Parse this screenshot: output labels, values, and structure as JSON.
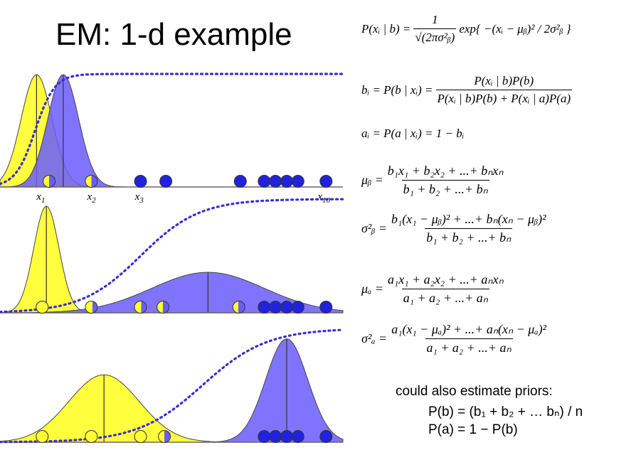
{
  "slide": {
    "title": "EM: 1-d example"
  },
  "panels": [
    {
      "name": "iteration-1",
      "curves": [
        {
          "component": "a",
          "color": "#ffff33",
          "mean": 1.3,
          "sd": 0.55,
          "peak": 1.0
        },
        {
          "component": "b",
          "color": "#6a5cff",
          "mean": 2.25,
          "sd": 0.55,
          "peak": 1.0
        }
      ],
      "posterior_curve": {
        "style": "dotted",
        "color": "#3a2cd6",
        "mid": 1.25,
        "steep": 0.35
      },
      "points": [
        {
          "x": 1.75,
          "b": 0.5
        },
        {
          "x": 3.25,
          "b": 0.5
        },
        {
          "x": 5.0,
          "b": 1
        },
        {
          "x": 5.9,
          "b": 1
        },
        {
          "x": 8.55,
          "b": 1
        },
        {
          "x": 9.4,
          "b": 1
        },
        {
          "x": 9.8,
          "b": 1
        },
        {
          "x": 10.2,
          "b": 1
        },
        {
          "x": 10.6,
          "b": 1
        },
        {
          "x": 11.6,
          "b": 1
        }
      ],
      "axis_labels": [
        {
          "text": "x",
          "sub": "1",
          "x": 1.3
        },
        {
          "text": "x",
          "sub": "2",
          "x": 3.1
        },
        {
          "text": "x",
          "sub": "3",
          "x": 4.8
        },
        {
          "text": "x",
          "sub": "10",
          "x": 11.3
        }
      ]
    },
    {
      "name": "iteration-2",
      "curves": [
        {
          "component": "a",
          "color": "#ffff33",
          "mean": 1.65,
          "sd": 0.45,
          "peak": 1.0
        },
        {
          "component": "b",
          "color": "#6a5cff",
          "mean": 7.4,
          "sd": 2.0,
          "peak": 0.38
        }
      ],
      "posterior_curve": {
        "style": "dotted",
        "color": "#3a2cd6",
        "mid": 5.0,
        "steep": 1.05
      },
      "points": [
        {
          "x": 1.5,
          "b": 0
        },
        {
          "x": 3.25,
          "b": 0.4
        },
        {
          "x": 5.0,
          "b": 0.45
        },
        {
          "x": 5.8,
          "b": 0.5
        },
        {
          "x": 8.5,
          "b": 0.55
        },
        {
          "x": 9.4,
          "b": 1
        },
        {
          "x": 9.8,
          "b": 1
        },
        {
          "x": 10.2,
          "b": 1
        },
        {
          "x": 10.6,
          "b": 1
        },
        {
          "x": 11.6,
          "b": 1
        }
      ]
    },
    {
      "name": "iteration-3",
      "curves": [
        {
          "component": "a",
          "color": "#ffff33",
          "mean": 3.7,
          "sd": 1.25,
          "peak": 0.6
        },
        {
          "component": "b",
          "color": "#6a5cff",
          "mean": 10.2,
          "sd": 0.75,
          "peak": 0.92
        }
      ],
      "posterior_curve": {
        "style": "dotted",
        "color": "#3a2cd6",
        "mid": 7.2,
        "steep": 1.15
      },
      "points": [
        {
          "x": 1.5,
          "b": 0
        },
        {
          "x": 3.25,
          "b": 0
        },
        {
          "x": 5.0,
          "b": 0
        },
        {
          "x": 5.85,
          "b": 0.5
        },
        {
          "x": 9.4,
          "b": 1
        },
        {
          "x": 9.8,
          "b": 1
        },
        {
          "x": 10.2,
          "b": 1
        },
        {
          "x": 10.6,
          "b": 1
        },
        {
          "x": 11.6,
          "b": 1
        }
      ]
    }
  ],
  "equations": {
    "likelihood_lhs": "P(xᵢ | b) =",
    "likelihood_coef_num": "1",
    "likelihood_coef_den": "√(2πσ²ᵦ)",
    "likelihood_exp": "exp{ −(xᵢ − μᵦ)² / 2σ²ᵦ }",
    "b_i_lhs": "bᵢ = P(b | xᵢ) =",
    "b_i_num": "P(xᵢ | b)P(b)",
    "b_i_den": "P(xᵢ | b)P(b) + P(xᵢ | a)P(a)",
    "a_i": "aᵢ = P(a | xᵢ) = 1 − bᵢ",
    "mu_b_lhs": "μᵦ =",
    "mu_b_num": "b₁x₁ + b₂x₂ + ...+ bₙxₙ",
    "mu_b_den": "b₁ + b₂ + ...+ bₙ",
    "sigma_b_lhs": "σ²ᵦ =",
    "sigma_b_num": "b₁(x₁ − μᵦ)² + ...+ bₙ(xₙ − μᵦ)²",
    "sigma_b_den": "b₁ + b₂ + ...+ bₙ",
    "mu_a_lhs": "μₐ =",
    "mu_a_num": "a₁x₁ + a₂x₂ + ...+ aₙxₙ",
    "mu_a_den": "a₁ + a₂ + ...+ aₙ",
    "sigma_a_lhs": "σ²ₐ =",
    "sigma_a_num": "a₁(x₁ − μₐ)² + ...+ aₙ(xₙ − μₐ)²",
    "sigma_a_den": "a₁ + a₂ + ...+ aₙ"
  },
  "priors_note": {
    "heading": "could also estimate priors:",
    "pb": "P(b) = (b₁ + b₂ + … bₙ) / n",
    "pa": "P(a) = 1 − P(b)"
  },
  "colors": {
    "component_a": "#ffff33",
    "component_b": "#6a5cff",
    "point_blue": "#2222dd",
    "posterior_dotted": "#3a2cd6"
  }
}
